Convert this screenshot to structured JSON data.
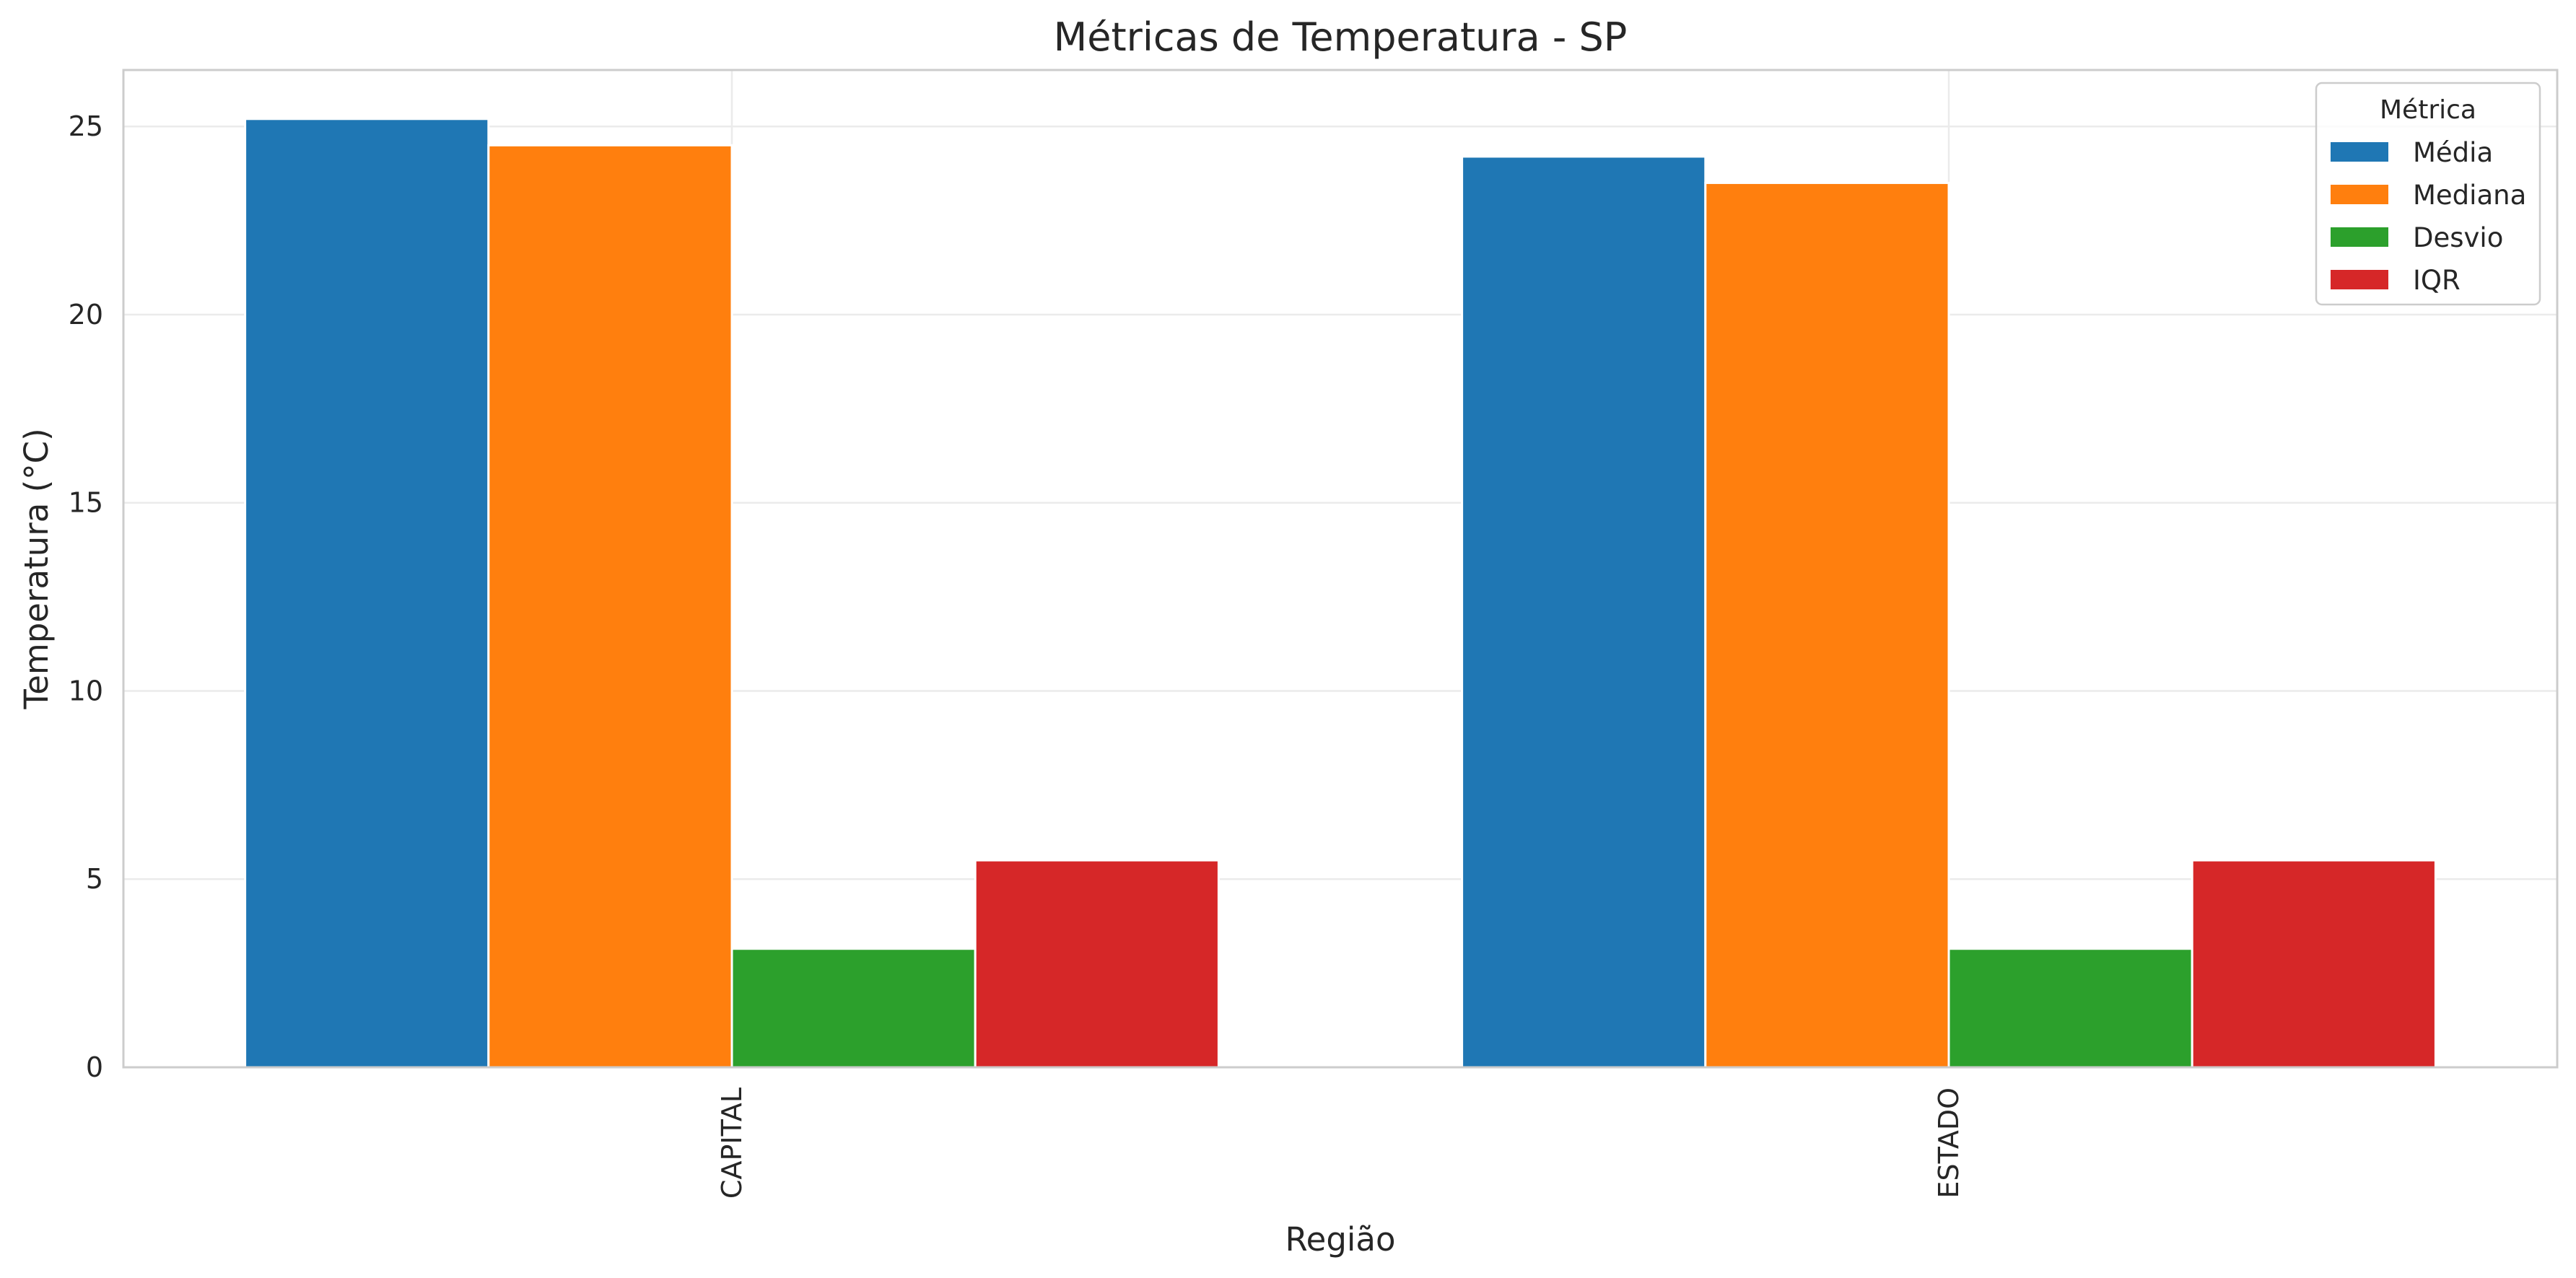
{
  "chart_data": {
    "type": "bar",
    "title": "Métricas de Temperatura - SP",
    "xlabel": "Região",
    "ylabel": "Temperatura (°C)",
    "categories": [
      "CAPITAL",
      "ESTADO"
    ],
    "series": [
      {
        "name": "Média",
        "color": "#1f77b4",
        "values": [
          25.2,
          24.2
        ]
      },
      {
        "name": "Mediana",
        "color": "#ff7f0e",
        "values": [
          24.5,
          23.5
        ]
      },
      {
        "name": "Desvio",
        "color": "#2ca02c",
        "values": [
          3.15,
          3.15
        ]
      },
      {
        "name": "IQR",
        "color": "#d62728",
        "values": [
          5.5,
          5.5
        ]
      }
    ],
    "ylim": [
      0,
      26.5
    ],
    "yticks": [
      0,
      5,
      10,
      15,
      20,
      25
    ],
    "grid": true,
    "legend": {
      "title": "Métrica",
      "placement": "top-right"
    }
  }
}
